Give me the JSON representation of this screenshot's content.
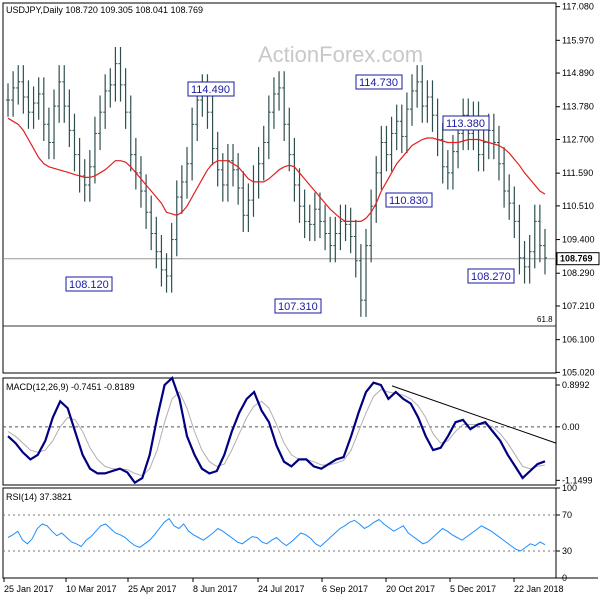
{
  "header": {
    "symbol_info": "USDJPY,Daily  108.720 109.305 108.041 108.769",
    "watermark": "ActionForex.com"
  },
  "chart_data": [
    {
      "type": "ohlc",
      "name": "price",
      "price_axis_ticks": [
        "117.080",
        "115.970",
        "114.890",
        "113.780",
        "112.700",
        "111.590",
        "110.510",
        "109.400",
        "108.290",
        "107.210",
        "106.100",
        "105.020"
      ],
      "current_price": "108.769",
      "fib_level": {
        "label": "61.8",
        "value": 106.55
      },
      "ylim": [
        105.0,
        117.2
      ],
      "price_series_approx": [
        114.0,
        114.4,
        114.6,
        114.1,
        113.6,
        113.9,
        114.2,
        113.2,
        112.6,
        113.8,
        114.6,
        113.8,
        113.0,
        112.2,
        111.5,
        111.2,
        111.8,
        112.9,
        113.6,
        114.3,
        114.5,
        115.2,
        114.5,
        113.6,
        112.2,
        111.6,
        111.0,
        110.3,
        109.6,
        109.0,
        108.4,
        108.2,
        109.4,
        110.8,
        111.3,
        111.9,
        113.2,
        114.0,
        114.3,
        113.6,
        112.4,
        111.7,
        111.2,
        112.0,
        111.7,
        111.1,
        110.2,
        110.7,
        111.3,
        111.9,
        112.6,
        113.6,
        114.2,
        114.4,
        113.2,
        112.2,
        111.2,
        110.5,
        110.0,
        109.9,
        110.4,
        110.0,
        109.6,
        109.2,
        109.6,
        110.0,
        109.9,
        109.5,
        108.7,
        107.4,
        109.2,
        110.5,
        111.6,
        112.6,
        112.2,
        112.9,
        113.3,
        112.8,
        113.7,
        114.3,
        114.6,
        113.8,
        114.1,
        113.5,
        112.7,
        111.8,
        111.6,
        112.3,
        112.9,
        113.5,
        112.9,
        113.4,
        112.2,
        112.6,
        113.0,
        112.6,
        111.9,
        111.0,
        110.6,
        110.0,
        108.8,
        108.5,
        109.0,
        110.0,
        109.2,
        108.8
      ],
      "ma_series_approx": [
        113.4,
        113.3,
        113.2,
        113.0,
        112.7,
        112.4,
        112.1,
        111.9,
        111.8,
        111.75,
        111.7,
        111.65,
        111.6,
        111.55,
        111.5,
        111.45,
        111.45,
        111.5,
        111.6,
        111.7,
        111.85,
        112.0,
        112.0,
        111.95,
        111.8,
        111.6,
        111.4,
        111.2,
        111.0,
        110.8,
        110.6,
        110.3,
        110.25,
        110.2,
        110.3,
        110.5,
        110.8,
        111.1,
        111.4,
        111.7,
        111.9,
        112.0,
        112.0,
        112.0,
        111.9,
        111.8,
        111.6,
        111.4,
        111.3,
        111.3,
        111.3,
        111.4,
        111.55,
        111.7,
        111.8,
        111.85,
        111.8,
        111.6,
        111.4,
        111.2,
        111.0,
        110.8,
        110.6,
        110.4,
        110.25,
        110.1,
        110.0,
        110.0,
        110.0,
        110.0,
        110.1,
        110.3,
        110.6,
        111.0,
        111.3,
        111.6,
        111.9,
        112.1,
        112.3,
        112.5,
        112.6,
        112.7,
        112.75,
        112.75,
        112.7,
        112.65,
        112.6,
        112.6,
        112.6,
        112.65,
        112.7,
        112.7,
        112.7,
        112.65,
        112.6,
        112.55,
        112.5,
        112.4,
        112.25,
        112.05,
        111.85,
        111.6,
        111.4,
        111.2,
        111.0,
        110.9
      ],
      "annotations": [
        {
          "text": "114.490",
          "value": 114.49
        },
        {
          "text": "114.730",
          "value": 114.73
        },
        {
          "text": "113.380",
          "value": 113.38
        },
        {
          "text": "110.830",
          "value": 110.83
        },
        {
          "text": "108.120",
          "value": 108.12
        },
        {
          "text": "107.310",
          "value": 107.31
        },
        {
          "text": "108.270",
          "value": 108.27
        }
      ]
    },
    {
      "type": "line",
      "name": "macd",
      "title": "MACD(12,26,9) -0.7451 -0.8189",
      "axis_ticks": [
        "0.8992",
        "0.00",
        "-1.1499"
      ],
      "ylim": [
        -1.25,
        1.05
      ],
      "macd_series_approx": [
        -0.2,
        -0.35,
        -0.55,
        -0.7,
        -0.6,
        -0.3,
        0.2,
        0.55,
        0.4,
        -0.1,
        -0.6,
        -0.9,
        -1.0,
        -1.0,
        -0.95,
        -0.9,
        -0.98,
        -1.2,
        -1.1,
        -0.6,
        0.2,
        0.9,
        1.05,
        0.6,
        -0.2,
        -0.6,
        -0.9,
        -1.0,
        -0.95,
        -0.6,
        -0.1,
        0.3,
        0.6,
        0.75,
        0.35,
        0.1,
        -0.4,
        -0.75,
        -0.85,
        -0.7,
        -0.7,
        -0.85,
        -0.9,
        -0.8,
        -0.7,
        -0.65,
        -0.2,
        0.3,
        0.75,
        0.95,
        0.9,
        0.6,
        0.75,
        0.6,
        0.5,
        0.2,
        -0.2,
        -0.5,
        -0.45,
        -0.2,
        0.1,
        0.15,
        -0.05,
        0.05,
        0.1,
        -0.1,
        -0.3,
        -0.6,
        -0.85,
        -1.1,
        -0.95,
        -0.8,
        -0.74
      ],
      "signal_series_approx": [
        -0.1,
        -0.2,
        -0.35,
        -0.5,
        -0.55,
        -0.5,
        -0.3,
        0.0,
        0.2,
        0.15,
        -0.1,
        -0.45,
        -0.7,
        -0.85,
        -0.9,
        -0.9,
        -0.92,
        -1.0,
        -1.05,
        -0.9,
        -0.5,
        0.1,
        0.6,
        0.75,
        0.4,
        -0.1,
        -0.5,
        -0.75,
        -0.85,
        -0.8,
        -0.5,
        -0.15,
        0.2,
        0.45,
        0.55,
        0.4,
        0.05,
        -0.35,
        -0.6,
        -0.7,
        -0.7,
        -0.75,
        -0.82,
        -0.82,
        -0.78,
        -0.72,
        -0.5,
        -0.1,
        0.3,
        0.65,
        0.8,
        0.75,
        0.72,
        0.68,
        0.6,
        0.45,
        0.2,
        -0.15,
        -0.35,
        -0.3,
        -0.1,
        0.05,
        0.05,
        0.05,
        0.05,
        0.0,
        -0.15,
        -0.35,
        -0.6,
        -0.85,
        -0.9,
        -0.85,
        -0.82
      ],
      "trendline": [
        0.88,
        -0.35
      ]
    },
    {
      "type": "line",
      "name": "rsi",
      "title": "RSI(14) 37.3821",
      "axis_ticks": [
        "100",
        "70",
        "30",
        "0"
      ],
      "ylim": [
        0,
        100
      ],
      "rsi_series_approx": [
        45,
        48,
        52,
        42,
        38,
        44,
        55,
        60,
        58,
        52,
        47,
        50,
        45,
        40,
        38,
        35,
        42,
        46,
        52,
        58,
        60,
        55,
        50,
        48,
        45,
        40,
        36,
        34,
        38,
        42,
        48,
        55,
        62,
        66,
        58,
        55,
        60,
        52,
        48,
        45,
        42,
        46,
        50,
        55,
        52,
        48,
        44,
        40,
        38,
        42,
        46,
        45,
        40,
        38,
        42,
        45,
        40,
        36,
        40,
        45,
        50,
        48,
        44,
        38,
        35,
        40,
        45,
        50,
        55,
        58,
        62,
        64,
        60,
        55,
        58,
        62,
        65,
        60,
        56,
        52,
        55,
        58,
        50,
        46,
        42,
        38,
        40,
        45,
        50,
        55,
        52,
        48,
        45,
        42,
        46,
        50,
        54,
        58,
        55,
        52,
        48,
        44,
        40,
        36,
        32,
        30,
        34,
        38,
        36,
        40,
        37
      ]
    }
  ],
  "x_axis_labels": [
    "25 Jan 2017",
    "10 Mar 2017",
    "25 Apr 2017",
    "8 Jun 2017",
    "24 Jul 2017",
    "6 Sep 2017",
    "20 Oct 2017",
    "5 Dec 2017",
    "22 Jan 2018"
  ],
  "colors": {
    "bars": "#2f4f4f",
    "ma": "#e02020",
    "macd": "#000080",
    "signal": "#b0b0b0",
    "rsi": "#1e8fff",
    "label_border": "#1a1aa0",
    "frame": "#000000"
  }
}
